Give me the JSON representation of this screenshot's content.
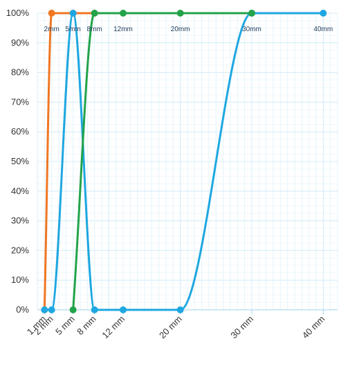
{
  "chart_data": {
    "type": "line",
    "title": "",
    "xlabel": "",
    "ylabel": "",
    "xlim": [
      0,
      42
    ],
    "ylim": [
      0,
      100
    ],
    "y_ticks": [
      "0%",
      "10%",
      "20%",
      "30%",
      "40%",
      "50%",
      "60%",
      "70%",
      "80%",
      "90%",
      "100%"
    ],
    "x_ticks": [
      {
        "value": 1,
        "label": "1 mm"
      },
      {
        "value": 2,
        "label": "2 mm"
      },
      {
        "value": 5,
        "label": "5 mm"
      },
      {
        "value": 8,
        "label": "8 mm"
      },
      {
        "value": 12,
        "label": "12 mm"
      },
      {
        "value": 20,
        "label": "20 mm"
      },
      {
        "value": 30,
        "label": "30 mm"
      },
      {
        "value": 40,
        "label": "40 mm"
      }
    ],
    "grid": true,
    "point_labels": [
      {
        "x": 2,
        "label": "2mm"
      },
      {
        "x": 5,
        "label": "5mm"
      },
      {
        "x": 8,
        "label": "8mm"
      },
      {
        "x": 12,
        "label": "12mm"
      },
      {
        "x": 20,
        "label": "20mm"
      },
      {
        "x": 30,
        "label": "30mm"
      },
      {
        "x": 40,
        "label": "40mm"
      }
    ],
    "series": [
      {
        "color": "#f07622",
        "points": [
          [
            1,
            0
          ],
          [
            2,
            100
          ],
          [
            5,
            100
          ],
          [
            8,
            100
          ]
        ]
      },
      {
        "color": "#1ea7e1",
        "points": [
          [
            1,
            0
          ],
          [
            2,
            0
          ],
          [
            5,
            100
          ],
          [
            8,
            0
          ],
          [
            12,
            0
          ],
          [
            20,
            0
          ],
          [
            30,
            100
          ],
          [
            40,
            100
          ]
        ]
      },
      {
        "color": "#22a34a",
        "points": [
          [
            5,
            0
          ],
          [
            8,
            100
          ],
          [
            12,
            100
          ],
          [
            20,
            100
          ],
          [
            30,
            100
          ]
        ]
      }
    ]
  }
}
